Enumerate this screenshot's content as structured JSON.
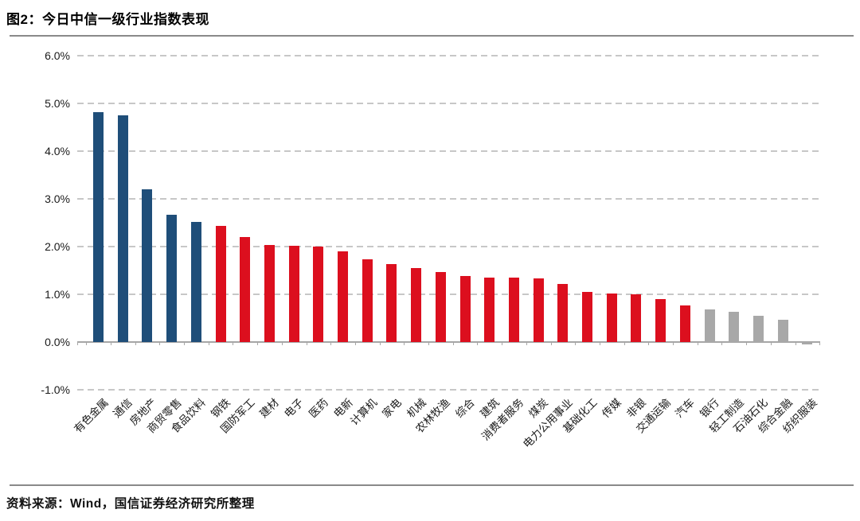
{
  "figure": {
    "title": "图2：今日中信一级行业指数表现",
    "source": "资料来源：Wind，国信证券经济研究所整理"
  },
  "chart_data": {
    "type": "bar",
    "title": "图2：今日中信一级行业指数表现",
    "xlabel": "",
    "ylabel": "",
    "ylim": [
      -1.0,
      6.0
    ],
    "grid": "horizontal-dashed",
    "legend_position": "none",
    "y_ticks": [
      {
        "label": "6.0%",
        "value": 6
      },
      {
        "label": "5.0%",
        "value": 5
      },
      {
        "label": "4.0%",
        "value": 4
      },
      {
        "label": "3.0%",
        "value": 3
      },
      {
        "label": "2.0%",
        "value": 2
      },
      {
        "label": "1.0%",
        "value": 1
      },
      {
        "label": "0.0%",
        "value": 0
      },
      {
        "label": "-1.0%",
        "value": -1
      }
    ],
    "categories": [
      "有色金属",
      "通信",
      "房地产",
      "商贸零售",
      "食品饮料",
      "钢铁",
      "国防军工",
      "建材",
      "电子",
      "医药",
      "电新",
      "计算机",
      "家电",
      "机械",
      "农林牧渔",
      "综合",
      "建筑",
      "消费者服务",
      "煤炭",
      "电力公用事业",
      "基础化工",
      "传媒",
      "非银",
      "交通运输",
      "汽车",
      "银行",
      "轻工制造",
      "石油石化",
      "综合金融",
      "纺织服装"
    ],
    "values": [
      4.82,
      4.75,
      3.2,
      2.67,
      2.51,
      2.43,
      2.2,
      2.03,
      2.01,
      2.0,
      1.9,
      1.73,
      1.63,
      1.55,
      1.47,
      1.38,
      1.35,
      1.35,
      1.33,
      1.21,
      1.05,
      1.02,
      1.0,
      0.9,
      0.76,
      0.69,
      0.63,
      0.55,
      0.46,
      -0.03
    ],
    "bar_color_groups": [
      "blue",
      "blue",
      "blue",
      "blue",
      "blue",
      "red",
      "red",
      "red",
      "red",
      "red",
      "red",
      "red",
      "red",
      "red",
      "red",
      "red",
      "red",
      "red",
      "red",
      "red",
      "red",
      "red",
      "red",
      "red",
      "red",
      "gray",
      "gray",
      "gray",
      "gray",
      "gray"
    ],
    "palette": {
      "blue": "#1F4E79",
      "red": "#DC0F1E",
      "gray": "#A8A8A8"
    }
  }
}
